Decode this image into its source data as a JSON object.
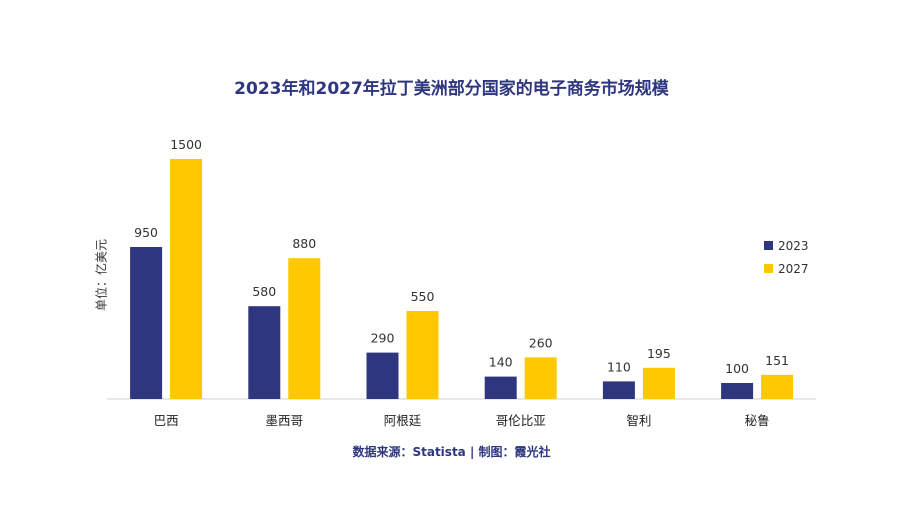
{
  "chart_data": {
    "type": "bar",
    "title": "2023年和2027年拉丁美洲部分国家的电子商务市场规模",
    "ylabel": "单位：亿美元",
    "categories": [
      "巴西",
      "墨西哥",
      "阿根廷",
      "哥伦比亚",
      "智利",
      "秘鲁"
    ],
    "series": [
      {
        "name": "2023",
        "values": [
          950,
          580,
          290,
          140,
          110,
          100
        ],
        "color": "#2e3680"
      },
      {
        "name": "2027",
        "values": [
          1500,
          880,
          550,
          260,
          195,
          151
        ],
        "color": "#ffc800"
      }
    ],
    "ylim": [
      0,
      1500
    ],
    "grid": false,
    "legend": "right"
  },
  "source": "数据来源：Statista | 制图：霞光社"
}
